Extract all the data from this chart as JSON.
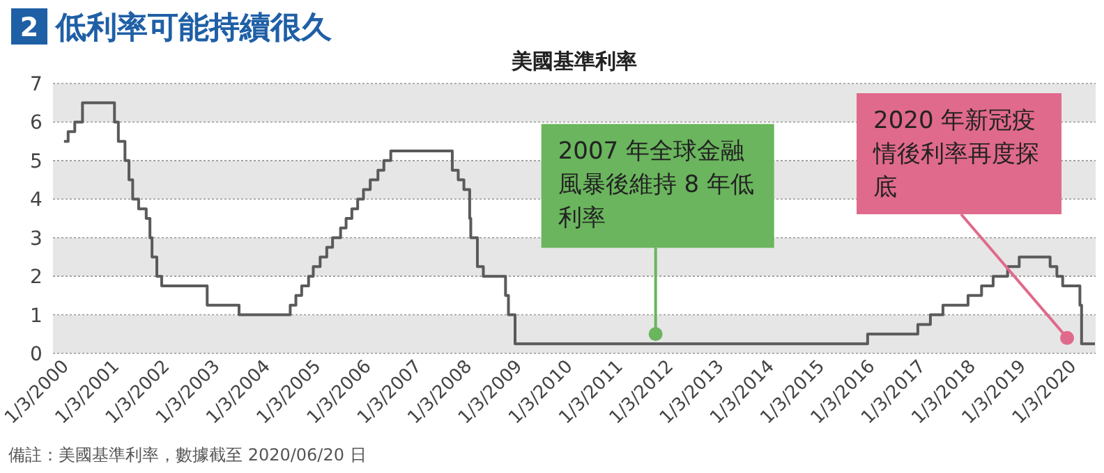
{
  "chart_data": {
    "type": "step",
    "title": "2 低利率可能持續很久",
    "subtitle": "美國基準利率",
    "x": [
      "2000-01-03",
      "2000-02-02",
      "2000-03-21",
      "2000-05-16",
      "2001-01-03",
      "2001-01-31",
      "2001-03-20",
      "2001-04-18",
      "2001-05-15",
      "2001-06-27",
      "2001-08-21",
      "2001-09-17",
      "2001-10-02",
      "2001-11-06",
      "2001-12-11",
      "2002-11-06",
      "2003-06-25",
      "2004-06-30",
      "2004-08-10",
      "2004-09-21",
      "2004-11-10",
      "2004-12-14",
      "2005-02-02",
      "2005-03-22",
      "2005-05-03",
      "2005-06-30",
      "2005-08-09",
      "2005-09-20",
      "2005-11-01",
      "2005-12-13",
      "2006-01-31",
      "2006-03-28",
      "2006-05-10",
      "2006-06-29",
      "2007-09-18",
      "2007-10-31",
      "2007-12-11",
      "2008-01-22",
      "2008-01-30",
      "2008-03-18",
      "2008-04-30",
      "2008-10-08",
      "2008-10-29",
      "2008-12-16",
      "2015-12-16",
      "2016-12-14",
      "2017-03-15",
      "2017-06-14",
      "2017-12-13",
      "2018-03-21",
      "2018-06-13",
      "2018-09-26",
      "2018-12-19",
      "2019-07-31",
      "2019-09-18",
      "2019-10-30",
      "2020-03-03",
      "2020-03-15",
      "2020-06-20"
    ],
    "series": [
      {
        "color": "#5a5a5a",
        "values": [
          5.5,
          5.75,
          6.0,
          6.5,
          6.0,
          5.5,
          5.0,
          4.5,
          4.0,
          3.75,
          3.5,
          3.0,
          2.5,
          2.0,
          1.75,
          1.25,
          1.0,
          1.25,
          1.5,
          1.75,
          2.0,
          2.25,
          2.5,
          2.75,
          3.0,
          3.25,
          3.5,
          3.75,
          4.0,
          4.25,
          4.5,
          4.75,
          5.0,
          5.25,
          4.75,
          4.5,
          4.25,
          3.5,
          3.0,
          2.25,
          2.0,
          1.5,
          1.0,
          0.25,
          0.5,
          0.75,
          1.0,
          1.25,
          1.5,
          1.75,
          2.0,
          2.25,
          2.5,
          2.25,
          2.0,
          1.75,
          1.25,
          0.25,
          0.25
        ]
      }
    ],
    "xlim": [
      "1999-10-15",
      "2020-06-25"
    ],
    "xticks": [
      {
        "value": "2000-01-03",
        "label": "1/3/2000"
      },
      {
        "value": "2001-01-03",
        "label": "1/3/2001"
      },
      {
        "value": "2002-01-03",
        "label": "1/3/2002"
      },
      {
        "value": "2003-01-03",
        "label": "1/3/2003"
      },
      {
        "value": "2004-01-03",
        "label": "1/3/2004"
      },
      {
        "value": "2005-01-03",
        "label": "1/3/2005"
      },
      {
        "value": "2006-01-03",
        "label": "1/3/2006"
      },
      {
        "value": "2007-01-03",
        "label": "1/3/2007"
      },
      {
        "value": "2008-01-03",
        "label": "1/3/2008"
      },
      {
        "value": "2009-01-03",
        "label": "1/3/2009"
      },
      {
        "value": "2010-01-03",
        "label": "1/3/2010"
      },
      {
        "value": "2011-01-03",
        "label": "1/3/2011"
      },
      {
        "value": "2012-01-03",
        "label": "1/3/2012"
      },
      {
        "value": "2013-01-03",
        "label": "1/3/2013"
      },
      {
        "value": "2014-01-03",
        "label": "1/3/2014"
      },
      {
        "value": "2015-01-03",
        "label": "1/3/2015"
      },
      {
        "value": "2016-01-03",
        "label": "1/3/2016"
      },
      {
        "value": "2017-01-03",
        "label": "1/3/2017"
      },
      {
        "value": "2018-01-03",
        "label": "1/3/2018"
      },
      {
        "value": "2019-01-03",
        "label": "1/3/2019"
      },
      {
        "value": "2020-01-03",
        "label": "1/3/2020"
      }
    ],
    "ylim": [
      0,
      7
    ],
    "yticks": [
      0,
      1,
      2,
      3,
      4,
      5,
      6,
      7
    ],
    "grid": "y",
    "annotations": [
      {
        "text": "2007 年全球金融風暴後維持 8 年低利率",
        "x": "2011-10",
        "y": 0.5
      },
      {
        "text": "2020 年新冠疫情後利率再度探底",
        "x": "2019-12",
        "y": 0.4
      },
      "備註：美國基準利率，數據截至 2020/06/20 日"
    ]
  }
}
